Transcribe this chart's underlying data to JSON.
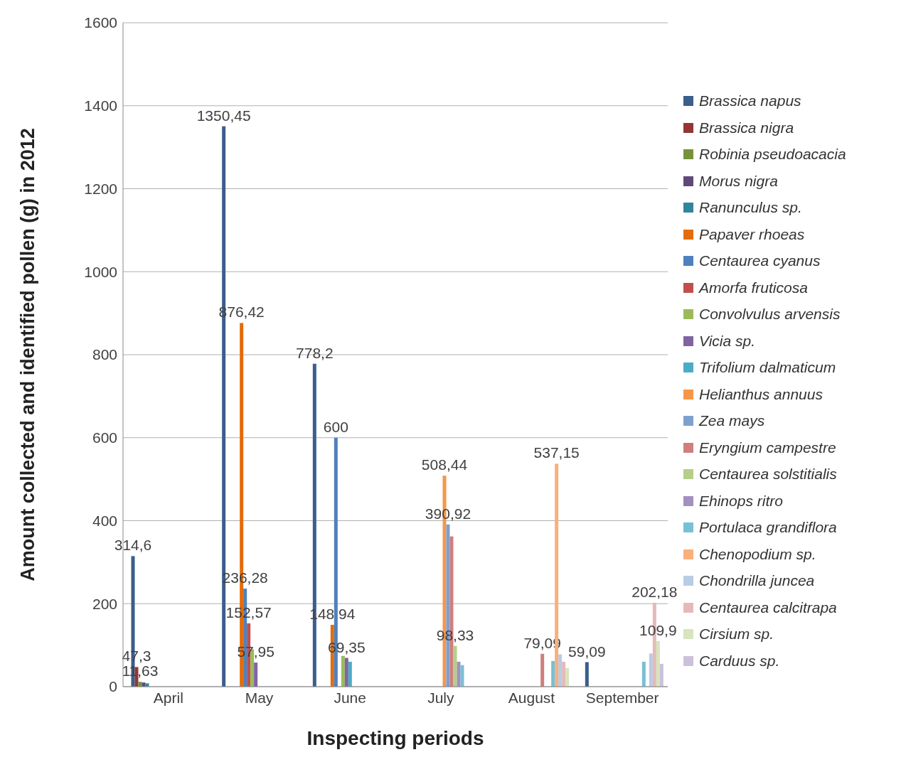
{
  "chart_data": {
    "type": "bar",
    "xlabel": "Inspecting periods",
    "ylabel": "Amount collected and identified pollen (g) in 2012",
    "categories": [
      "April",
      "May",
      "June",
      "July",
      "August",
      "September"
    ],
    "ylim": [
      0,
      1600
    ],
    "yticks": [
      0,
      200,
      400,
      600,
      800,
      1000,
      1200,
      1400,
      1600
    ],
    "grid": "y",
    "legend": "right",
    "series": [
      {
        "name": "Brassica napus",
        "color": "#3b5e8c",
        "values": [
          314.6,
          1350.45,
          778.2,
          null,
          null,
          59.09
        ],
        "value_labels": [
          "314,6",
          "1350,45",
          "778,2",
          null,
          null,
          "59,09"
        ]
      },
      {
        "name": "Brassica nigra",
        "color": "#943634",
        "values": [
          47.3,
          null,
          null,
          null,
          null,
          null
        ],
        "value_labels": [
          "47,3",
          null,
          null,
          null,
          null,
          null
        ]
      },
      {
        "name": "Robinia pseudoacacia",
        "color": "#76923c",
        "values": [
          11.63,
          null,
          null,
          null,
          null,
          null
        ],
        "value_labels": [
          "11,63",
          null,
          null,
          null,
          null,
          null
        ]
      },
      {
        "name": "Morus nigra",
        "color": "#5f497a",
        "values": [
          10,
          null,
          null,
          null,
          null,
          null
        ]
      },
      {
        "name": "Ranunculus sp.",
        "color": "#31859c",
        "values": [
          8,
          null,
          null,
          null,
          null,
          null
        ]
      },
      {
        "name": "Papaver rhoeas",
        "color": "#e46c0a",
        "values": [
          null,
          876.42,
          148.94,
          null,
          null,
          null
        ],
        "value_labels": [
          null,
          "876,42",
          "148,94",
          null,
          null,
          null
        ]
      },
      {
        "name": "Centaurea cyanus",
        "color": "#4f81bd",
        "values": [
          null,
          236.28,
          600,
          null,
          null,
          null
        ],
        "value_labels": [
          null,
          "236,28",
          "600",
          null,
          null,
          null
        ]
      },
      {
        "name": "Amorfa fruticosa",
        "color": "#c0504d",
        "values": [
          null,
          152.57,
          null,
          null,
          null,
          null
        ],
        "value_labels": [
          null,
          "152,57",
          null,
          null,
          null,
          null
        ]
      },
      {
        "name": "Convolvulus arvensis",
        "color": "#9bbb59",
        "values": [
          null,
          90,
          74,
          null,
          null,
          null
        ]
      },
      {
        "name": "Vicia sp.",
        "color": "#8064a2",
        "values": [
          null,
          57.95,
          69.35,
          null,
          null,
          null
        ],
        "value_labels": [
          null,
          "57,95",
          "69,35",
          null,
          null,
          null
        ]
      },
      {
        "name": "Trifolium dalmaticum",
        "color": "#4bacc6",
        "values": [
          null,
          null,
          60,
          null,
          null,
          null
        ]
      },
      {
        "name": "Helianthus annuus",
        "color": "#f79646",
        "values": [
          null,
          null,
          null,
          508.44,
          null,
          null
        ],
        "value_labels": [
          null,
          null,
          null,
          "508,44",
          null,
          null
        ]
      },
      {
        "name": "Zea mays",
        "color": "#7f9fcf",
        "values": [
          null,
          null,
          null,
          390.92,
          null,
          null
        ],
        "value_labels": [
          null,
          null,
          null,
          "390,92",
          null,
          null
        ]
      },
      {
        "name": "Eryngium campestre",
        "color": "#cf7f7d",
        "values": [
          null,
          null,
          null,
          362,
          79.09,
          null
        ],
        "value_labels": [
          null,
          null,
          null,
          null,
          "79,09",
          null
        ]
      },
      {
        "name": "Centaurea solstitialis",
        "color": "#b4cf88",
        "values": [
          null,
          null,
          null,
          98.33,
          null,
          null
        ],
        "value_labels": [
          null,
          null,
          null,
          "98,33",
          null,
          null
        ]
      },
      {
        "name": "Ehinops ritro",
        "color": "#a290c0",
        "values": [
          null,
          null,
          null,
          60,
          null,
          null
        ]
      },
      {
        "name": "Portulaca grandiflora",
        "color": "#78c0d6",
        "values": [
          null,
          null,
          null,
          52,
          62,
          60
        ]
      },
      {
        "name": "Chenopodium sp.",
        "color": "#f9b07a",
        "values": [
          null,
          null,
          null,
          null,
          537.15,
          null
        ],
        "value_labels": [
          null,
          null,
          null,
          null,
          "537,15",
          null
        ]
      },
      {
        "name": "Chondrilla juncea",
        "color": "#b8cce4",
        "values": [
          null,
          null,
          null,
          null,
          78,
          80
        ]
      },
      {
        "name": "Centaurea calcitrapa",
        "color": "#e6b9b8",
        "values": [
          null,
          null,
          null,
          null,
          60,
          202.18
        ],
        "value_labels": [
          null,
          null,
          null,
          null,
          null,
          "202,18"
        ]
      },
      {
        "name": "Cirsium sp.",
        "color": "#d7e4bd",
        "values": [
          null,
          null,
          null,
          null,
          45,
          109.9
        ],
        "value_labels": [
          null,
          null,
          null,
          null,
          null,
          "109,9"
        ]
      },
      {
        "name": "Carduus sp.",
        "color": "#ccc1da",
        "values": [
          null,
          null,
          null,
          null,
          null,
          55
        ]
      }
    ]
  }
}
